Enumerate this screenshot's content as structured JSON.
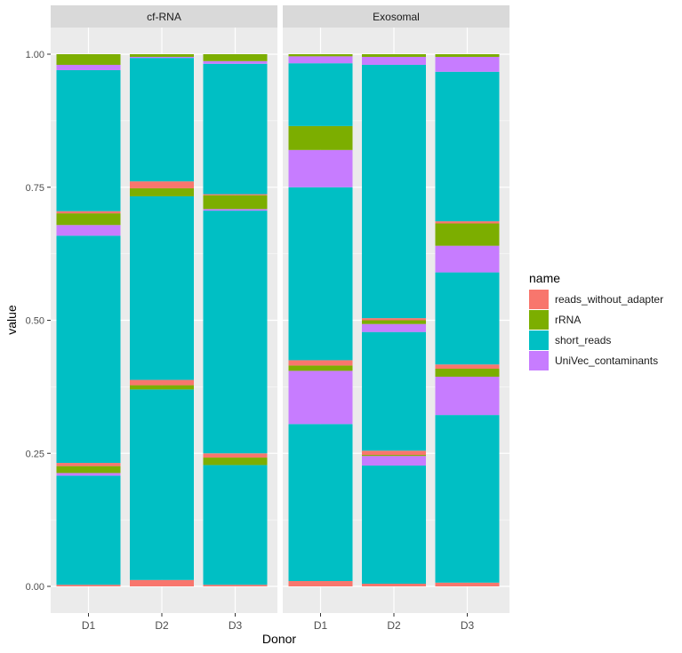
{
  "chart_data": {
    "type": "bar",
    "stacked": true,
    "faceted": true,
    "xlabel": "Donor",
    "ylabel": "value",
    "ylim": [
      0,
      1
    ],
    "yticks": [
      "0.00",
      "0.25",
      "0.50",
      "0.75",
      "1.00"
    ],
    "ytick_values": [
      0,
      0.25,
      0.5,
      0.75,
      1.0
    ],
    "categories": [
      "D1",
      "D2",
      "D3"
    ],
    "legend": {
      "title": "name",
      "position": "right",
      "entries": [
        {
          "name": "reads_without_adapter",
          "color": "#F8766D"
        },
        {
          "name": "rRNA",
          "color": "#7CAE00"
        },
        {
          "name": "short_reads",
          "color": "#00BFC4"
        },
        {
          "name": "UniVec_contaminants",
          "color": "#C77CFF"
        }
      ]
    },
    "facets": [
      {
        "title": "cf-RNA",
        "bars": [
          {
            "donor": "D1",
            "segments": [
              {
                "name": "reads_without_adapter",
                "value": 0.003
              },
              {
                "name": "short_reads",
                "value": 0.205
              },
              {
                "name": "UniVec_contaminants",
                "value": 0.005
              },
              {
                "name": "rRNA",
                "value": 0.013
              },
              {
                "name": "reads_without_adapter",
                "value": 0.006
              },
              {
                "name": "short_reads",
                "value": 0.427
              },
              {
                "name": "UniVec_contaminants",
                "value": 0.02
              },
              {
                "name": "rRNA",
                "value": 0.022
              },
              {
                "name": "reads_without_adapter",
                "value": 0.004
              },
              {
                "name": "short_reads",
                "value": 0.265
              },
              {
                "name": "UniVec_contaminants",
                "value": 0.01
              },
              {
                "name": "rRNA",
                "value": 0.02
              }
            ]
          },
          {
            "donor": "D2",
            "segments": [
              {
                "name": "reads_without_adapter",
                "value": 0.012
              },
              {
                "name": "short_reads",
                "value": 0.358
              },
              {
                "name": "rRNA",
                "value": 0.008
              },
              {
                "name": "reads_without_adapter",
                "value": 0.01
              },
              {
                "name": "short_reads",
                "value": 0.345
              },
              {
                "name": "rRNA",
                "value": 0.015
              },
              {
                "name": "reads_without_adapter",
                "value": 0.013
              },
              {
                "name": "short_reads",
                "value": 0.232
              },
              {
                "name": "UniVec_contaminants",
                "value": 0.002
              },
              {
                "name": "rRNA",
                "value": 0.005
              }
            ]
          },
          {
            "donor": "D3",
            "segments": [
              {
                "name": "reads_without_adapter",
                "value": 0.003
              },
              {
                "name": "short_reads",
                "value": 0.225
              },
              {
                "name": "rRNA",
                "value": 0.014
              },
              {
                "name": "reads_without_adapter",
                "value": 0.008
              },
              {
                "name": "short_reads",
                "value": 0.456
              },
              {
                "name": "UniVec_contaminants",
                "value": 0.003
              },
              {
                "name": "rRNA",
                "value": 0.026
              },
              {
                "name": "reads_without_adapter",
                "value": 0.002
              },
              {
                "name": "short_reads",
                "value": 0.245
              },
              {
                "name": "UniVec_contaminants",
                "value": 0.005
              },
              {
                "name": "rRNA",
                "value": 0.013
              }
            ]
          }
        ]
      },
      {
        "title": "Exosomal",
        "bars": [
          {
            "donor": "D1",
            "segments": [
              {
                "name": "reads_without_adapter",
                "value": 0.01
              },
              {
                "name": "short_reads",
                "value": 0.295
              },
              {
                "name": "UniVec_contaminants",
                "value": 0.1
              },
              {
                "name": "rRNA",
                "value": 0.01
              },
              {
                "name": "reads_without_adapter",
                "value": 0.01
              },
              {
                "name": "short_reads",
                "value": 0.325
              },
              {
                "name": "UniVec_contaminants",
                "value": 0.07
              },
              {
                "name": "rRNA",
                "value": 0.045
              },
              {
                "name": "short_reads",
                "value": 0.118
              },
              {
                "name": "UniVec_contaminants",
                "value": 0.013
              },
              {
                "name": "rRNA",
                "value": 0.004
              }
            ]
          },
          {
            "donor": "D2",
            "segments": [
              {
                "name": "reads_without_adapter",
                "value": 0.005
              },
              {
                "name": "short_reads",
                "value": 0.222
              },
              {
                "name": "UniVec_contaminants",
                "value": 0.018
              },
              {
                "name": "rRNA",
                "value": 0.002
              },
              {
                "name": "reads_without_adapter",
                "value": 0.008
              },
              {
                "name": "short_reads",
                "value": 0.223
              },
              {
                "name": "UniVec_contaminants",
                "value": 0.015
              },
              {
                "name": "rRNA",
                "value": 0.007
              },
              {
                "name": "reads_without_adapter",
                "value": 0.004
              },
              {
                "name": "short_reads",
                "value": 0.476
              },
              {
                "name": "UniVec_contaminants",
                "value": 0.015
              },
              {
                "name": "rRNA",
                "value": 0.005
              }
            ]
          },
          {
            "donor": "D3",
            "segments": [
              {
                "name": "reads_without_adapter",
                "value": 0.007
              },
              {
                "name": "short_reads",
                "value": 0.315
              },
              {
                "name": "UniVec_contaminants",
                "value": 0.072
              },
              {
                "name": "rRNA",
                "value": 0.015
              },
              {
                "name": "reads_without_adapter",
                "value": 0.008
              },
              {
                "name": "short_reads",
                "value": 0.173
              },
              {
                "name": "UniVec_contaminants",
                "value": 0.05
              },
              {
                "name": "rRNA",
                "value": 0.042
              },
              {
                "name": "reads_without_adapter",
                "value": 0.004
              },
              {
                "name": "short_reads",
                "value": 0.281
              },
              {
                "name": "UniVec_contaminants",
                "value": 0.028
              },
              {
                "name": "rRNA",
                "value": 0.005
              }
            ]
          }
        ]
      }
    ]
  }
}
